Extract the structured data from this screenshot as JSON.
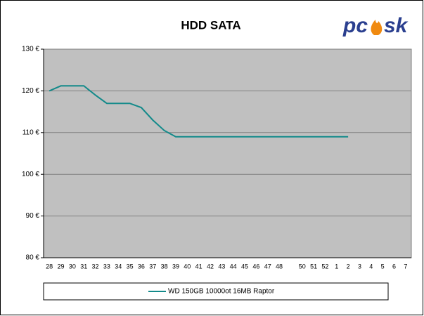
{
  "chart_data": {
    "type": "line",
    "title": "HDD SATA",
    "logo": [
      "pc",
      "sk"
    ],
    "categories": [
      "28",
      "29",
      "30",
      "31",
      "32",
      "33",
      "34",
      "35",
      "36",
      "37",
      "38",
      "39",
      "40",
      "41",
      "42",
      "43",
      "44",
      "45",
      "46",
      "47",
      "48",
      null,
      "50",
      "51",
      "52",
      "1",
      "2",
      "3",
      "4",
      "5",
      "6",
      "7"
    ],
    "series": [
      {
        "name": "WD 150GB 10000ot 16MB Raptor",
        "color": "#138a8a",
        "values": [
          120,
          121.2,
          121.2,
          121.2,
          119,
          117,
          117,
          117,
          116,
          113,
          110.5,
          109,
          109,
          109,
          109,
          109,
          109,
          109,
          109,
          109,
          109,
          109,
          109,
          109,
          109,
          109,
          109,
          null,
          null,
          null,
          null,
          null
        ]
      }
    ],
    "ylim": [
      80,
      130
    ],
    "yticks": [
      {
        "value": 80,
        "label": "80 €"
      },
      {
        "value": 90,
        "label": "90 €"
      },
      {
        "value": 100,
        "label": "100 €"
      },
      {
        "value": 110,
        "label": "110 €"
      },
      {
        "value": 120,
        "label": "120 €"
      },
      {
        "value": 130,
        "label": "130 €"
      }
    ],
    "grid": true
  }
}
